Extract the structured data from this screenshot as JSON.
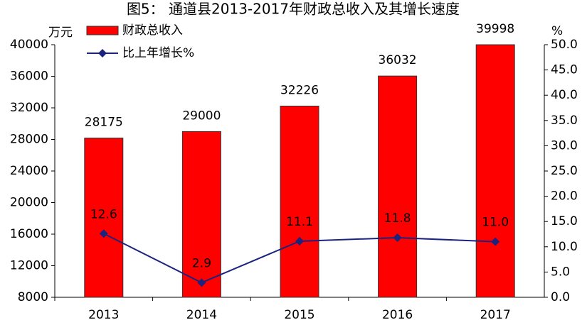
{
  "chart_data": {
    "type": "bar-line",
    "title": "图5：  通道县2013-2017年财政总收入及其增长速度",
    "y_label": "万元",
    "y2_label": "%",
    "categories": [
      "2013",
      "2014",
      "2015",
      "2016",
      "2017"
    ],
    "series": [
      {
        "name": "财政总收入",
        "type": "bar",
        "color": "#ff0000",
        "values": [
          28175,
          29000,
          32226,
          36032,
          39998
        ]
      },
      {
        "name": "比上年增长%",
        "type": "line",
        "axis": "y2",
        "color": "#1a237e",
        "values": [
          12.6,
          2.9,
          11.1,
          11.8,
          11.0
        ],
        "value_labels": [
          "12.6",
          "2.9",
          "11.1",
          "11.8",
          "11.0"
        ]
      }
    ],
    "ylim": [
      8000,
      40000
    ],
    "yticks": [
      8000,
      12000,
      16000,
      20000,
      24000,
      28000,
      32000,
      36000,
      40000
    ],
    "y2lim": [
      0,
      50
    ],
    "y2ticks": [
      {
        "value": 0,
        "label": "0.0"
      },
      {
        "value": 5,
        "label": "5.0"
      },
      {
        "value": 10,
        "label": "10.0"
      },
      {
        "value": 15,
        "label": "15.0"
      },
      {
        "value": 20,
        "label": "20.0"
      },
      {
        "value": 25,
        "label": "25.0"
      },
      {
        "value": 30,
        "label": "30.0"
      },
      {
        "value": 35,
        "label": "35.0"
      },
      {
        "value": 40,
        "label": "40.0"
      },
      {
        "value": 45,
        "label": "45.0"
      },
      {
        "value": 50,
        "label": "50.0"
      }
    ],
    "legend": "upper-left"
  }
}
